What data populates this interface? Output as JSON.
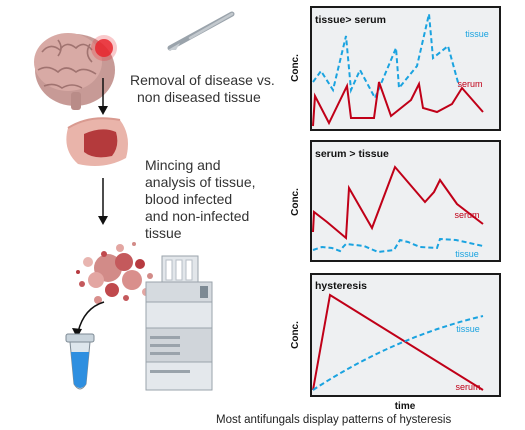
{
  "colors": {
    "serum": "#c00018",
    "tissue": "#1aa3e0",
    "panel_bg": "#eef0f2",
    "border": "#1a1a1a",
    "text": "#333333"
  },
  "steps": {
    "removal": [
      "Removal of disease vs.",
      "non diseased tissue"
    ],
    "mincing": [
      "Mincing and",
      "analysis of tissue,",
      "blood infected",
      "and non-infected",
      "tissue"
    ]
  },
  "icons": [
    "brain-icon",
    "scalpel-icon",
    "tissue-sample-icon",
    "cell-debris-icon",
    "microtube-icon",
    "hplc-instrument-icon"
  ],
  "panels": {
    "p1": {
      "title": "tissue> serum",
      "ylabel": "Conc.",
      "tissue_label": "tissue",
      "serum_label": "serum"
    },
    "p2": {
      "title": "serum > tissue",
      "ylabel": "Conc.",
      "tissue_label": "tissue",
      "serum_label": "serum"
    },
    "p3": {
      "title": "hysteresis",
      "ylabel": "Conc.",
      "xlabel": "time",
      "tissue_label": "tissue",
      "serum_label": "serum"
    }
  },
  "caption": "Most antifungals display patterns of hysteresis"
}
